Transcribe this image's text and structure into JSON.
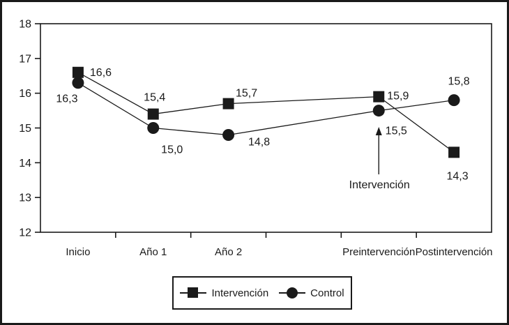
{
  "chart_data": {
    "type": "line",
    "title": "",
    "xlabel": "",
    "ylabel": "",
    "grid": false,
    "y_axis": {
      "min": 12,
      "max": 18,
      "tick_step": 1,
      "ticks": [
        12,
        13,
        14,
        15,
        16,
        17,
        18
      ]
    },
    "x_axis": {
      "n_slots": 6,
      "categories": [
        {
          "label": "Inicio",
          "slot": 0
        },
        {
          "label": "Año 1",
          "slot": 1
        },
        {
          "label": "Año 2",
          "slot": 2
        },
        {
          "label": "Preintervención",
          "slot": 4
        },
        {
          "label": "Postintervención",
          "slot": 5
        }
      ]
    },
    "series": [
      {
        "name": "Intervención",
        "marker": "square",
        "points": [
          {
            "category": "Inicio",
            "slot": 0,
            "value": 16.6,
            "label": "16,6",
            "label_anchor": "start",
            "label_dx": 17,
            "label_dy": 5
          },
          {
            "category": "Año 1",
            "slot": 1,
            "value": 15.4,
            "label": "15,4",
            "label_anchor": "middle",
            "label_dx": 2,
            "label_dy": -19
          },
          {
            "category": "Año 2",
            "slot": 2,
            "value": 15.7,
            "label": "15,7",
            "label_anchor": "middle",
            "label_dx": 26,
            "label_dy": -10
          },
          {
            "category": "Preintervención",
            "slot": 4,
            "value": 15.9,
            "label": "15,9",
            "label_anchor": "start",
            "label_dx": 12,
            "label_dy": 4
          },
          {
            "category": "Postintervención",
            "slot": 5,
            "value": 14.3,
            "label": "14,3",
            "label_anchor": "middle",
            "label_dx": 5,
            "label_dy": 39
          }
        ]
      },
      {
        "name": "Control",
        "marker": "circle",
        "points": [
          {
            "category": "Inicio",
            "slot": 0,
            "value": 16.3,
            "label": "16,3",
            "label_anchor": "middle",
            "label_dx": -16,
            "label_dy": 28
          },
          {
            "category": "Año 1",
            "slot": 1,
            "value": 15.0,
            "label": "15,0",
            "label_anchor": "middle",
            "label_dx": 27,
            "label_dy": 36
          },
          {
            "category": "Año 2",
            "slot": 2,
            "value": 14.8,
            "label": "14,8",
            "label_anchor": "middle",
            "label_dx": 44,
            "label_dy": 15
          },
          {
            "category": "Preintervención",
            "slot": 4,
            "value": 15.5,
            "label": "15,5",
            "label_anchor": "middle",
            "label_dx": 25,
            "label_dy": 34
          },
          {
            "category": "Postintervención",
            "slot": 5,
            "value": 15.8,
            "label": "15,8",
            "label_anchor": "middle",
            "label_dx": 7,
            "label_dy": -22
          }
        ]
      }
    ],
    "annotation": {
      "text": "Intervención",
      "target_series": "Control",
      "target_category": "Preintervención",
      "has_arrow": true
    },
    "legend": {
      "position": "bottom-center",
      "items": [
        {
          "label": "Intervención",
          "marker": "square"
        },
        {
          "label": "Control",
          "marker": "circle"
        }
      ]
    },
    "colors": {
      "ink": "#1a1a1a",
      "background": "#ffffff"
    }
  }
}
